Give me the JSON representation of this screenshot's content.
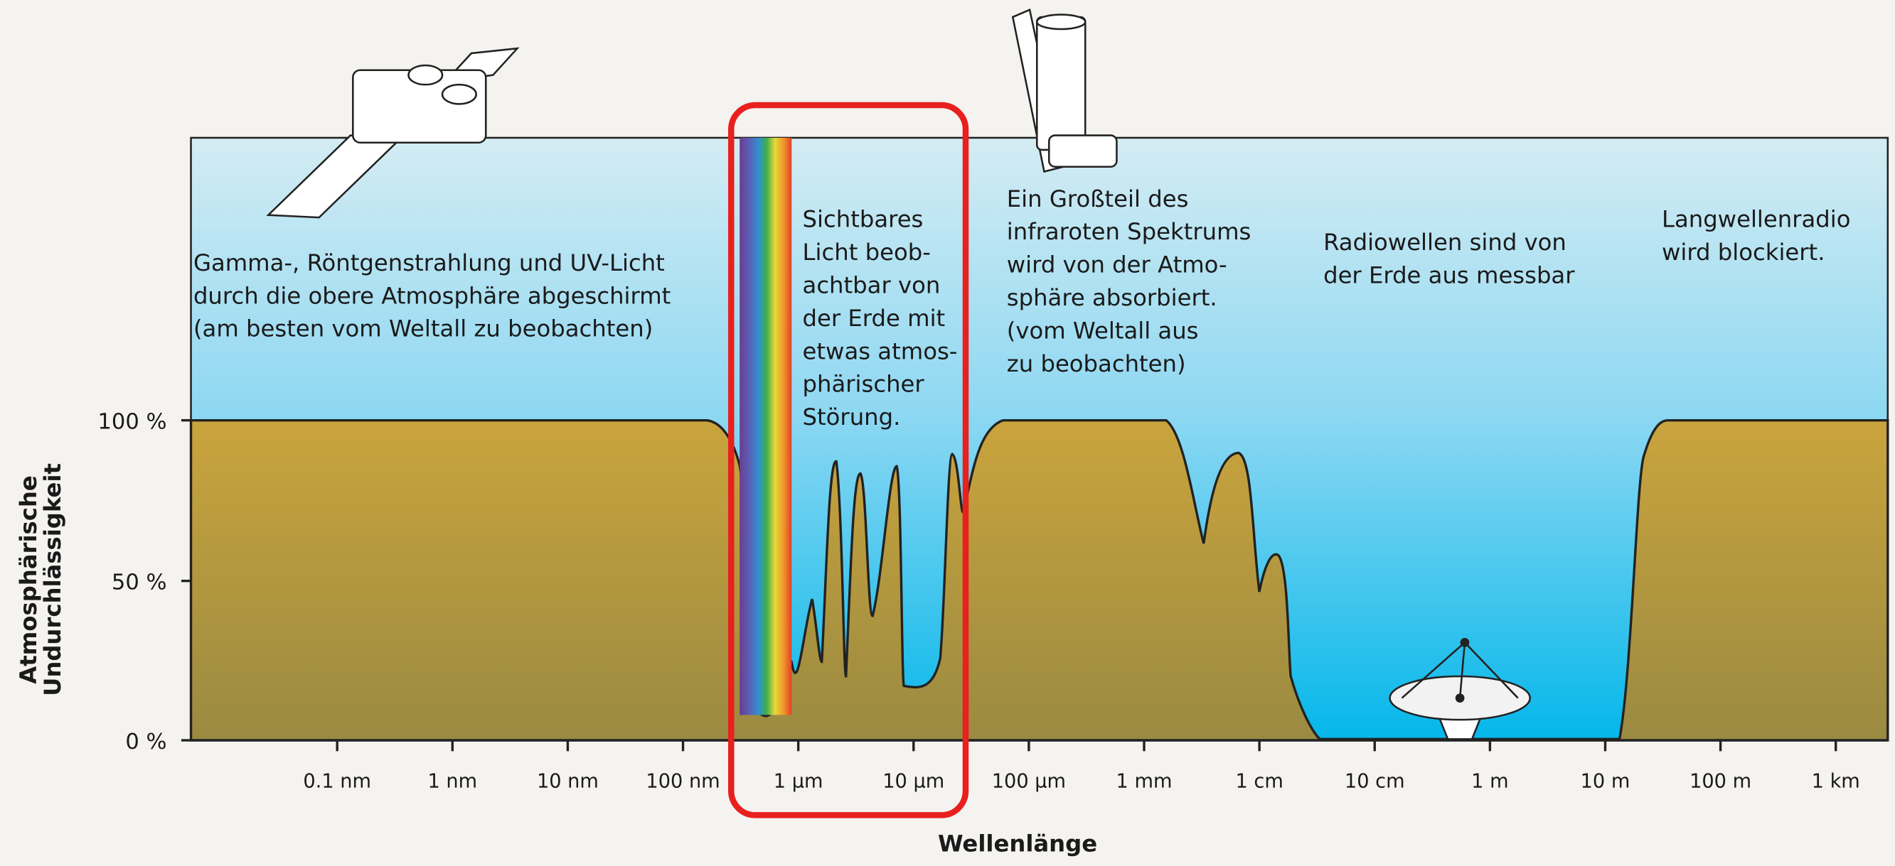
{
  "axes": {
    "x_title": "Wellenlänge",
    "y_title": [
      "Atmosphärische",
      "Undurchlässigkeit"
    ],
    "y_ticks": [
      "100 %",
      "50 %",
      "0 %"
    ],
    "x_ticks": [
      "0.1 nm",
      "1 nm",
      "10 nm",
      "100 nm",
      "1 µm",
      "10 µm",
      "100 µm",
      "1 mm",
      "1 cm",
      "10 cm",
      "1 m",
      "10 m",
      "100 m",
      "1 km"
    ]
  },
  "notes": [
    {
      "lines": [
        "Gamma-, Röntgenstrahlung und UV-Licht",
        "durch die obere Atmosphäre abgeschirmt",
        "(am besten vom Weltall zu beobachten)"
      ]
    },
    {
      "lines": [
        "Sichtbares",
        "Licht beob-",
        "achtbar von",
        "der Erde mit",
        "etwas atmos-",
        "phärischer",
        "Störung."
      ]
    },
    {
      "lines": [
        "Ein Großteil des",
        "infraroten Spektrums",
        "wird von der Atmo-",
        "sphäre absorbiert.",
        "(vom Weltall aus",
        "zu beobachten)"
      ]
    },
    {
      "lines": [
        "Radiowellen sind von",
        "der Erde aus messbar"
      ]
    },
    {
      "lines": [
        "Langwellenradio",
        "wird blockiert."
      ]
    }
  ]
}
